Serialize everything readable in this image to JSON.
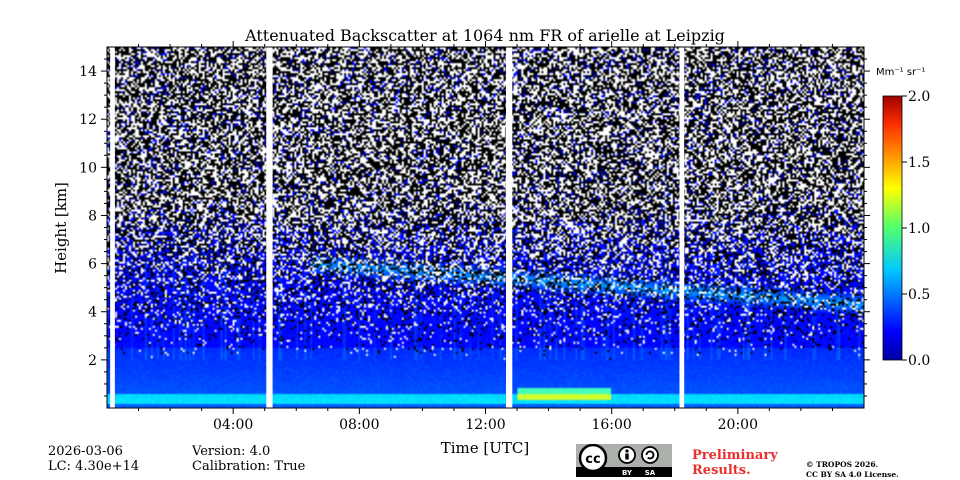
{
  "chart_data": {
    "type": "heatmap",
    "title": "Attenuated Backscatter at 1064 nm FR of arielle at Leipzig",
    "xlabel": "Time [UTC]",
    "ylabel": "Height [km]",
    "xlim_hours": [
      0,
      24
    ],
    "ylim_km": [
      0,
      15
    ],
    "x_ticks": [
      {
        "hour": 4,
        "label": "04:00"
      },
      {
        "hour": 8,
        "label": "08:00"
      },
      {
        "hour": 12,
        "label": "12:00"
      },
      {
        "hour": 16,
        "label": "16:00"
      },
      {
        "hour": 20,
        "label": "20:00"
      }
    ],
    "y_ticks": [
      {
        "km": 2,
        "label": "2"
      },
      {
        "km": 4,
        "label": "4"
      },
      {
        "km": 6,
        "label": "6"
      },
      {
        "km": 8,
        "label": "8"
      },
      {
        "km": 10,
        "label": "10"
      },
      {
        "km": 12,
        "label": "12"
      },
      {
        "km": 14,
        "label": "14"
      }
    ],
    "colorbar": {
      "unit_label": "Mm⁻¹ sr⁻¹",
      "range": [
        0.0,
        2.0
      ],
      "colormap": "jet",
      "ticks": [
        {
          "value": 0.0,
          "label": "0.0"
        },
        {
          "value": 0.5,
          "label": "0.5"
        },
        {
          "value": 1.0,
          "label": "1.0"
        },
        {
          "value": 1.5,
          "label": "1.5"
        },
        {
          "value": 2.0,
          "label": "2.0"
        }
      ]
    },
    "data_gaps_hours": [
      {
        "start": 0.1,
        "end": 0.25
      },
      {
        "start": 5.05,
        "end": 5.25
      },
      {
        "start": 12.65,
        "end": 12.85
      },
      {
        "start": 18.15,
        "end": 18.3
      }
    ],
    "features": [
      {
        "name": "boundary layer",
        "top_km": 2.5,
        "value": 0.2
      },
      {
        "name": "surface layer",
        "start_hour": 0,
        "end_hour": 24,
        "bottom_km": 0.2,
        "top_km": 0.6,
        "value": 0.5
      },
      {
        "name": "aerosol layer enhancement",
        "start_hour": 13,
        "end_hour": 16,
        "bottom_km": 0.3,
        "top_km": 0.8,
        "value": 0.9
      },
      {
        "name": "elevated aerosol layer",
        "start_hour": 6.5,
        "end_hour": 24,
        "height_start_km": 6.0,
        "height_end_km": 4.3,
        "value": 0.3
      }
    ]
  },
  "meta": {
    "date": "2026-03-06",
    "lc": "LC: 4.30e+14",
    "version": "Version: 4.0",
    "calibration": "Calibration: True"
  },
  "license": {
    "cc": "cc",
    "by": "BY",
    "sa": "SA",
    "preliminary_line1": "Preliminary",
    "preliminary_line2": "Results.",
    "copyright_line1": "© TROPOS 2026.",
    "copyright_line2": "CC BY SA 4.0 License."
  },
  "colors": {
    "gap": "#ffffff",
    "noise": "#000000",
    "preliminary": "#e8312f"
  }
}
